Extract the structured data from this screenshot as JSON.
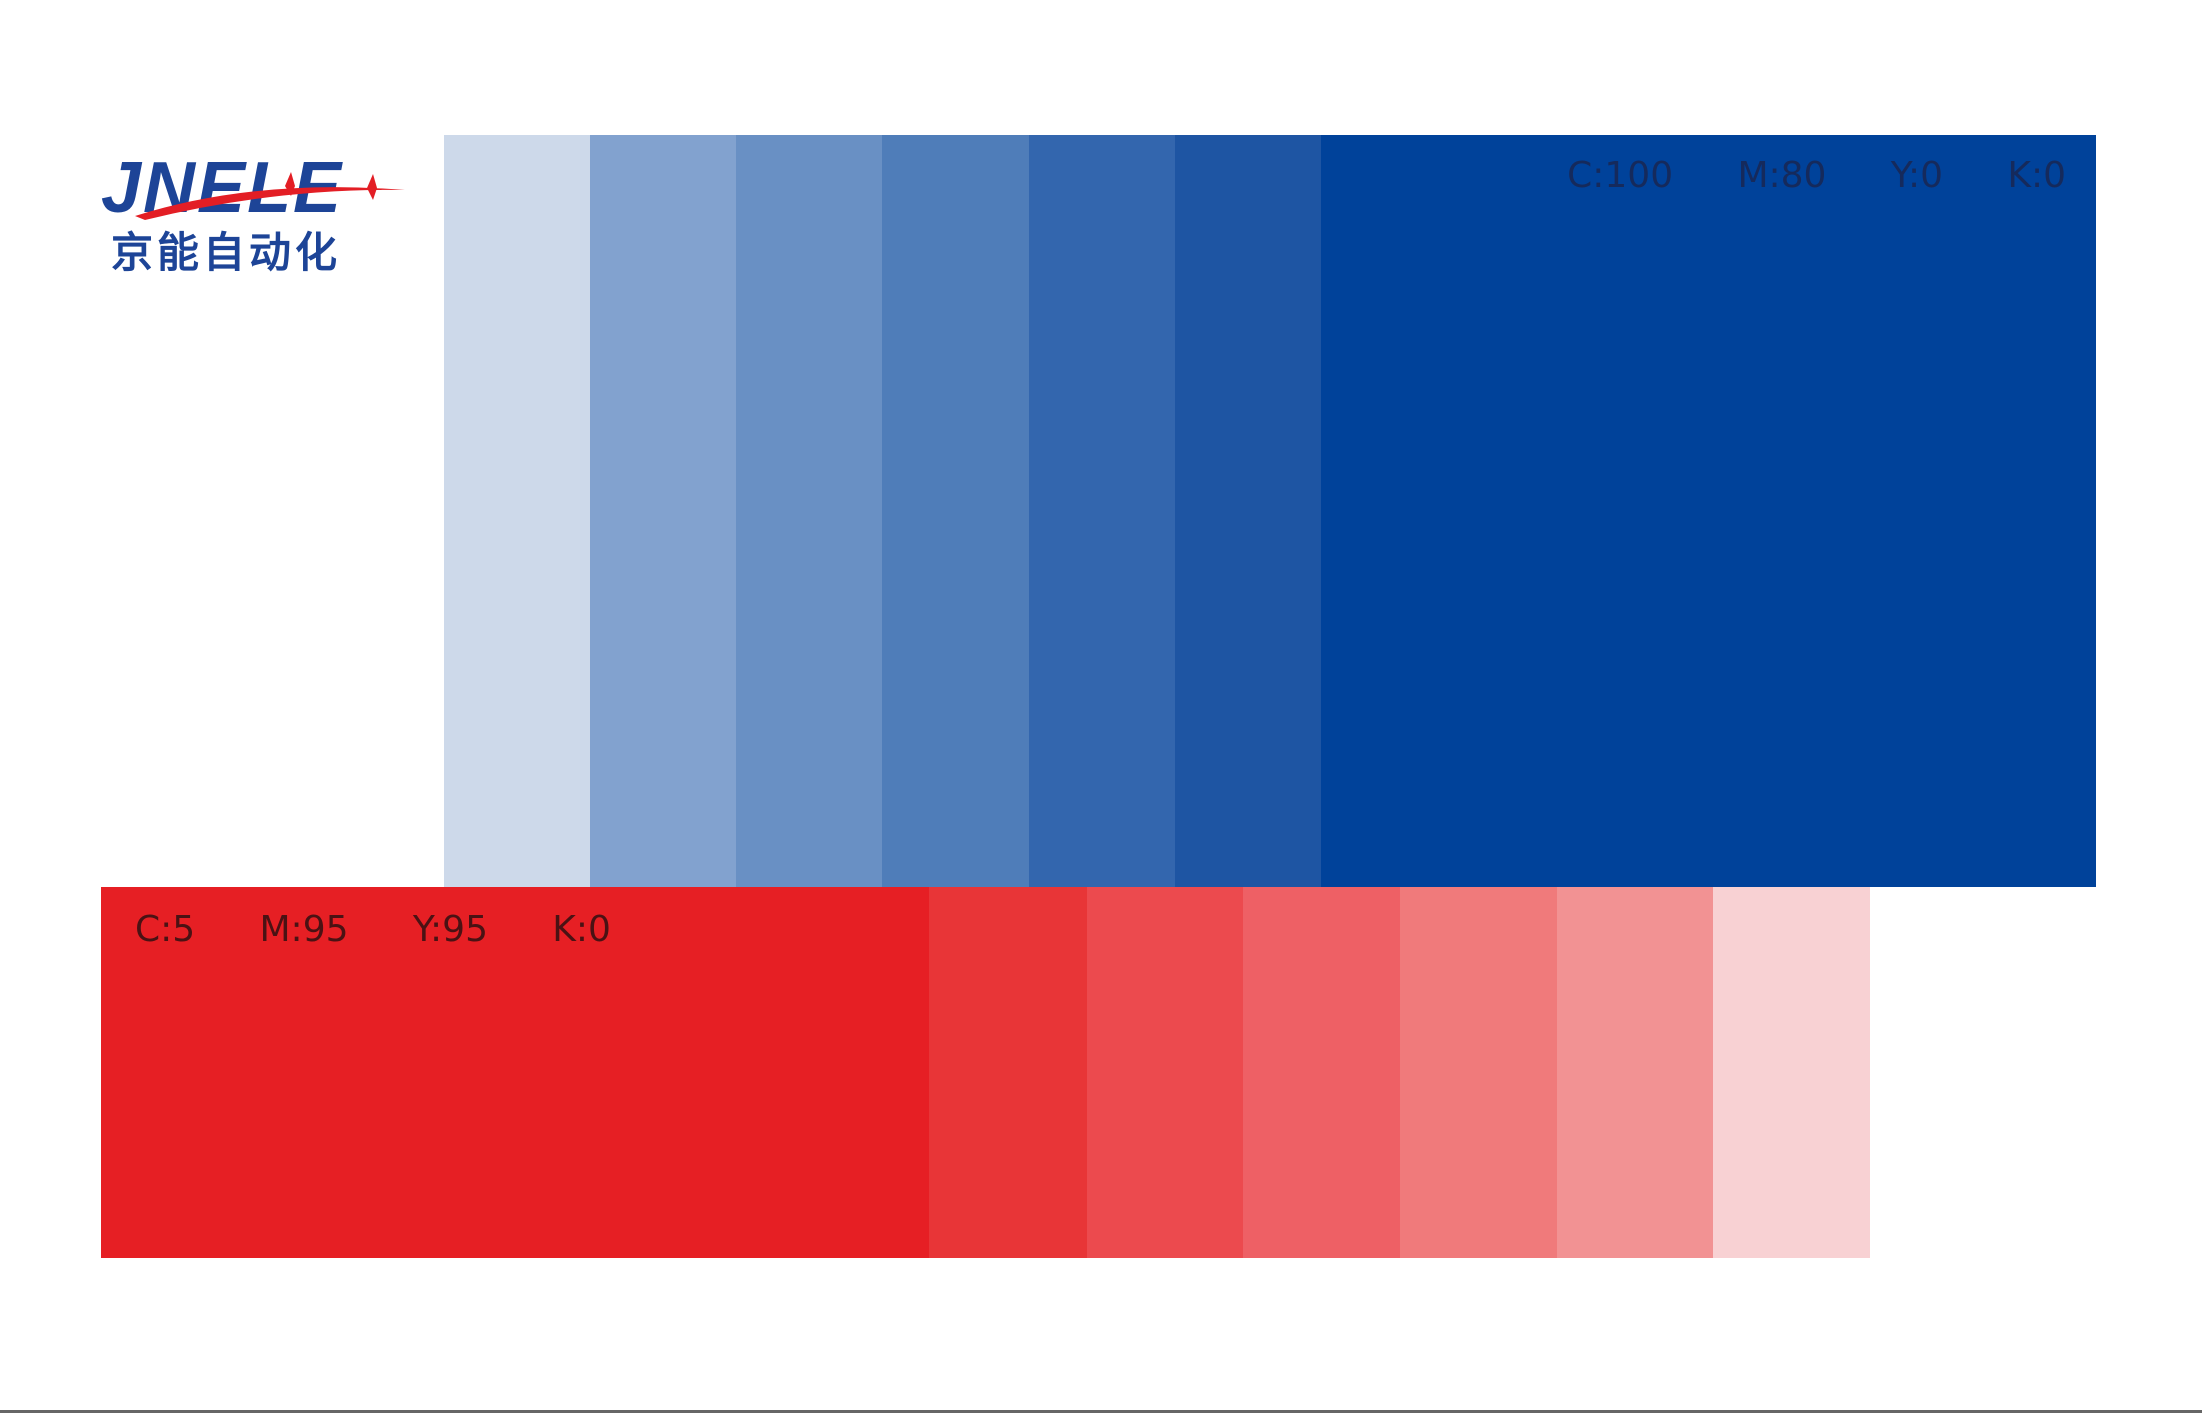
{
  "logo": {
    "latin": "JNELE",
    "chinese": "京能自动化"
  },
  "blue_palette": {
    "label": "C:100   M:80   Y:0   K:0",
    "swatches": [
      "#cdd9ea",
      "#82a2cf",
      "#6990c4",
      "#4f7db9",
      "#3366ae",
      "#1e55a3",
      "#00429a"
    ]
  },
  "red_palette": {
    "label": "C:5   M:95   Y:95   K:0",
    "swatches": [
      "#e61f24",
      "#e83537",
      "#ec4a4e",
      "#ee6065",
      "#f07a7b",
      "#f29293",
      "#f8d1d3"
    ]
  }
}
